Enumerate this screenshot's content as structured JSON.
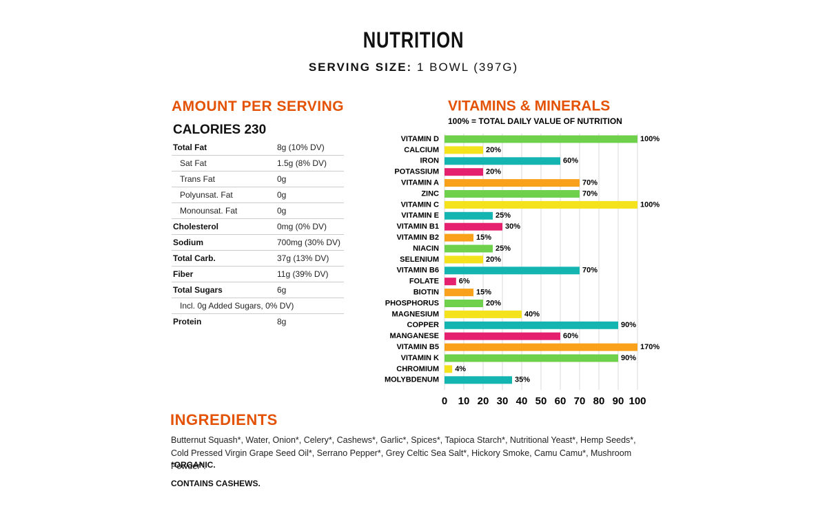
{
  "header": {
    "title": "NUTRITION",
    "serving_label": "SERVING SIZE:",
    "serving_value": "1 BOWL (397G)"
  },
  "amount_per_serving": {
    "title": "AMOUNT PER SERVING",
    "calories": "CALORIES 230",
    "rows": [
      [
        "Total Fat",
        "8g (10% DV)"
      ],
      [
        "Sat Fat",
        "1.5g (8% DV)"
      ],
      [
        "Trans Fat",
        "0g"
      ],
      [
        "Polyunsat. Fat",
        "0g"
      ],
      [
        "Monounsat. Fat",
        "0g"
      ],
      [
        "Cholesterol",
        "0mg (0% DV)"
      ],
      [
        "Sodium",
        "700mg (30% DV)"
      ],
      [
        "Total Carb.",
        "37g (13% DV)"
      ],
      [
        "Fiber",
        "11g (39% DV)"
      ],
      [
        "Total Sugars",
        "6g"
      ],
      [
        "Incl. 0g Added Sugars, 0% DV)"
      ],
      [
        "Protein",
        "8g"
      ]
    ]
  },
  "chart_data": {
    "type": "hbar",
    "title": "VITAMINS & MINERALS",
    "subtitle": "100% = TOTAL DAILY VALUE OF NUTRITION",
    "categories": [
      "VITAMIN D",
      "CALCIUM",
      "IRON",
      "POTASSIUM",
      "VITAMIN A",
      "ZINC",
      "VITAMIN C",
      "VITAMIN E",
      "VITAMIN B1",
      "VITAMIN B2",
      "NIACIN",
      "SELENIUM",
      "VITAMIN B6",
      "FOLATE",
      "BIOTIN",
      "PHOSPHORUS",
      "MAGNESIUM",
      "COPPER",
      "MANGANESE",
      "VITAMIN B5",
      "VITAMIN K",
      "CHROMIUM",
      "MOLYBDENUM"
    ],
    "values": [
      100,
      20,
      60,
      20,
      70,
      70,
      100,
      25,
      30,
      15,
      25,
      20,
      70,
      6,
      15,
      20,
      40,
      90,
      60,
      170,
      90,
      4,
      35
    ],
    "value_labels": [
      "100%",
      "20%",
      "60%",
      "20%",
      "70%",
      "70%",
      "100%",
      "25%",
      "30%",
      "15%",
      "25%",
      "20%",
      "70%",
      "6%",
      "15%",
      "20%",
      "40%",
      "90%",
      "60%",
      "170%",
      "90%",
      "4%",
      "35%"
    ],
    "colors": [
      "#6fd14b",
      "#f4e31c",
      "#14b5b0",
      "#e5206e",
      "#f9a11b",
      "#6fd14b",
      "#f4e31c",
      "#14b5b0",
      "#e5206e",
      "#f9a11b",
      "#6fd14b",
      "#f4e31c",
      "#14b5b0",
      "#e5206e",
      "#f9a11b",
      "#6fd14b",
      "#f4e31c",
      "#14b5b0",
      "#e5206e",
      "#f9a11b",
      "#6fd14b",
      "#f4e31c",
      "#14b5b0"
    ],
    "xlim": [
      0,
      100
    ],
    "xticks": [
      0,
      10,
      20,
      30,
      40,
      50,
      60,
      70,
      80,
      90,
      100
    ],
    "grid": true
  },
  "ingredients": {
    "title": "INGREDIENTS",
    "text": "Butternut Squash*, Water, Onion*, Celery*, Cashews*, Garlic*, Spices*, Tapioca Starch*, Nutritional Yeast*, Hemp Seeds*, Cold Pressed Virgin Grape Seed Oil*, Serrano Pepper*, Grey Celtic Sea Salt*, Hickory Smoke, Camu Camu*, Mushroom Powder*.",
    "organic": "*ORGANIC.",
    "allergen": "CONTAINS CASHEWS."
  }
}
